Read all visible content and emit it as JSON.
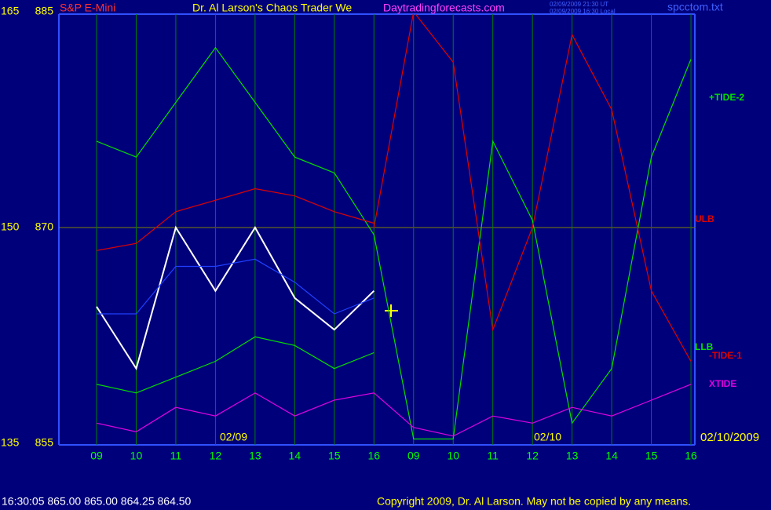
{
  "chart_data": {
    "type": "line",
    "title": "Dr. Al Larson's Chaos Trader We",
    "symbol": "S&P E-Mini",
    "site": "Daytradingforecasts.com",
    "stamp_ut": "02/09/2009 21:30 UT",
    "stamp_local": "02/09/2009 16:30 Local",
    "file": "spcctom.txt",
    "date_labels": [
      "02/09",
      "02/10",
      "02/10/2009"
    ],
    "status": "16:30:05  865.00  865.00  864.25  864.50",
    "copyright": "Copyright 2009, Dr. Al Larson. May not be copied by any means.",
    "categories": [
      "09",
      "10",
      "11",
      "12",
      "13",
      "14",
      "15",
      "16",
      "09",
      "10",
      "11",
      "12",
      "13",
      "14",
      "15",
      "16"
    ],
    "ylim": [
      855,
      885
    ],
    "yticks": [
      855,
      870,
      885
    ],
    "y2lim": [
      135,
      165
    ],
    "y2ticks": [
      135,
      150,
      165
    ],
    "grid": true,
    "series": [
      {
        "name": "+TIDE-2",
        "color": "#00e000",
        "values": [
          876,
          874.9,
          878.7,
          882.5,
          878.7,
          874.9,
          873.8,
          869.5,
          855.3,
          855.3,
          876,
          870.5,
          856.4,
          860.2,
          874.9,
          881.7
        ]
      },
      {
        "name": "ULB",
        "color": "#e00000",
        "values": [
          868.4,
          868.9,
          871.1,
          871.9,
          872.7,
          872.2,
          871.1,
          870.3,
          null,
          null,
          null,
          null,
          null,
          null,
          null,
          null
        ]
      },
      {
        "name": "LLB",
        "color": "#00e000",
        "values": [
          859.1,
          858.5,
          859.6,
          860.7,
          862.4,
          861.8,
          860.2,
          861.3,
          null,
          null,
          null,
          null,
          null,
          null,
          null,
          null
        ]
      },
      {
        "name": "-TIDE-1",
        "color": "#e00000",
        "values": [
          null,
          null,
          null,
          null,
          null,
          null,
          null,
          870,
          885,
          881.5,
          862.9,
          870,
          883.4,
          878.2,
          865.6,
          860.7
        ]
      },
      {
        "name": "XTIDE",
        "color": "#e000e0",
        "values": [
          856.4,
          855.8,
          857.5,
          856.9,
          858.5,
          856.9,
          858,
          858.5,
          856.1,
          855.5,
          856.9,
          856.4,
          857.5,
          856.9,
          858,
          859.1
        ]
      },
      {
        "color": "#ffffff",
        "values": [
          864.5,
          860.2,
          870,
          865.6,
          870,
          865.1,
          862.9,
          865.6,
          null,
          null,
          null,
          null,
          null,
          null,
          null,
          null
        ]
      },
      {
        "color": "#2040ff",
        "values": [
          864,
          864,
          867.3,
          867.3,
          867.8,
          866.2,
          864,
          865.1,
          null,
          null,
          null,
          null,
          null,
          null,
          null,
          null
        ]
      }
    ]
  }
}
